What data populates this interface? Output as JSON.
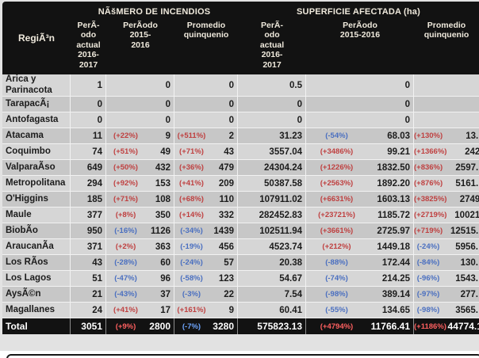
{
  "table": {
    "region_header": "RegiÃ³n",
    "groups": [
      {
        "title": "NÃšMERO DE INCENDIOS",
        "cols": [
          "PerÃ-\nodo\nactual\n2016-\n2017",
          "PerÃodo\n2015-\n2016",
          "Promedio\nquinquenio"
        ]
      },
      {
        "title": "SUPERFICIE AFECTADA (ha)",
        "cols": [
          "PerÃ-\nodo\nactual\n2016-\n2017",
          "PerÃodo\n2015-2016",
          "Promedio\nquinquenio"
        ]
      }
    ],
    "rows": [
      {
        "region": "Arica y\nParinacota",
        "na": "1",
        "np1": "",
        "nv": "0",
        "np2": "",
        "nq": "0",
        "sa": "0.5",
        "sp1": "",
        "sv": "0",
        "sp2": "",
        "sq": ""
      },
      {
        "region": "TarapacÃ¡",
        "na": "0",
        "np1": "",
        "nv": "0",
        "np2": "",
        "nq": "0",
        "sa": "0",
        "sp1": "",
        "sv": "0",
        "sp2": "",
        "sq": ""
      },
      {
        "region": "Antofagasta",
        "na": "0",
        "np1": "",
        "nv": "0",
        "np2": "",
        "nq": "0",
        "sa": "0",
        "sp1": "",
        "sv": "0",
        "sp2": "",
        "sq": ""
      },
      {
        "region": "Atacama",
        "na": "11",
        "np1": "(+22%)",
        "nv": "9",
        "np2": "(+511%)",
        "nq": "2",
        "sa": "31.23",
        "sp1": "(-54%)",
        "sv": "68.03",
        "sp2": "(+130%)",
        "sq": "13."
      },
      {
        "region": "Coquimbo",
        "na": "74",
        "np1": "(+51%)",
        "nv": "49",
        "np2": "(+71%)",
        "nq": "43",
        "sa": "3557.04",
        "sp1": "(+3486%)",
        "sv": "99.21",
        "sp2": "(+1366%)",
        "sq": "242."
      },
      {
        "region": "ValparaÃso",
        "na": "649",
        "np1": "(+50%)",
        "nv": "432",
        "np2": "(+36%)",
        "nq": "479",
        "sa": "24304.24",
        "sp1": "(+1226%)",
        "sv": "1832.50",
        "sp2": "(+836%)",
        "sq": "2597."
      },
      {
        "region": "Metropolitana",
        "na": "294",
        "np1": "(+92%)",
        "nv": "153",
        "np2": "(+41%)",
        "nq": "209",
        "sa": "50387.58",
        "sp1": "(+2563%)",
        "sv": "1892.20",
        "sp2": "(+876%)",
        "sq": "5161."
      },
      {
        "region": "O'Higgins",
        "na": "185",
        "np1": "(+71%)",
        "nv": "108",
        "np2": "(+68%)",
        "nq": "110",
        "sa": "107911.02",
        "sp1": "(+6631%)",
        "sv": "1603.13",
        "sp2": "(+3825%)",
        "sq": "2749."
      },
      {
        "region": "Maule",
        "na": "377",
        "np1": "(+8%)",
        "nv": "350",
        "np2": "(+14%)",
        "nq": "332",
        "sa": "282452.83",
        "sp1": "(+23721%)",
        "sv": "1185.72",
        "sp2": "(+2719%)",
        "sq": "10021."
      },
      {
        "region": "BiobÃo",
        "na": "950",
        "np1": "(-16%)",
        "nv": "1126",
        "np2": "(-34%)",
        "nq": "1439",
        "sa": "102511.94",
        "sp1": "(+3661%)",
        "sv": "2725.97",
        "sp2": "(+719%)",
        "sq": "12515."
      },
      {
        "region": "AraucanÃa",
        "na": "371",
        "np1": "(+2%)",
        "nv": "363",
        "np2": "(-19%)",
        "nq": "456",
        "sa": "4523.74",
        "sp1": "(+212%)",
        "sv": "1449.18",
        "sp2": "(-24%)",
        "sq": "5956."
      },
      {
        "region": "Los RÃos",
        "na": "43",
        "np1": "(-28%)",
        "nv": "60",
        "np2": "(-24%)",
        "nq": "57",
        "sa": "20.38",
        "sp1": "(-88%)",
        "sv": "172.44",
        "sp2": "(-84%)",
        "sq": "130."
      },
      {
        "region": "Los Lagos",
        "na": "51",
        "np1": "(-47%)",
        "nv": "96",
        "np2": "(-58%)",
        "nq": "123",
        "sa": "54.67",
        "sp1": "(-74%)",
        "sv": "214.25",
        "sp2": "(-96%)",
        "sq": "1543."
      },
      {
        "region": "AysÃ©n",
        "na": "21",
        "np1": "(-43%)",
        "nv": "37",
        "np2": "(-3%)",
        "nq": "22",
        "sa": "7.54",
        "sp1": "(-98%)",
        "sv": "389.14",
        "sp2": "(-97%)",
        "sq": "277."
      },
      {
        "region": "Magallanes",
        "na": "24",
        "np1": "(+41%)",
        "nv": "17",
        "np2": "(+161%)",
        "nq": "9",
        "sa": "60.41",
        "sp1": "(-55%)",
        "sv": "134.65",
        "sp2": "(-98%)",
        "sq": "3565."
      }
    ],
    "total": {
      "region": "Total",
      "na": "3051",
      "np1": "(+9%)",
      "nv": "2800",
      "np2": "(-7%)",
      "nq": "3280",
      "sa": "575823.13",
      "sp1": "(+4794%)",
      "sv": "11766.41",
      "sp2": "(+1186%)",
      "sq": "44774.1"
    },
    "colors": {
      "positive": "#bf4040",
      "negative": "#4a6fc0"
    }
  }
}
